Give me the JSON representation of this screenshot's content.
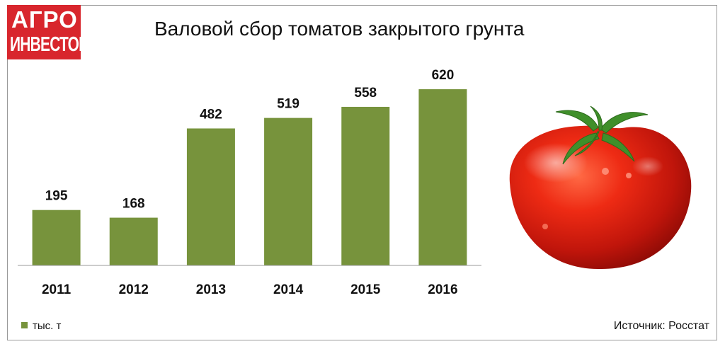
{
  "logo": {
    "line1": "АГРО",
    "line2": "ИНВЕСТОР"
  },
  "title": "Валовой сбор томатов закрытого грунта",
  "source": "Источник: Росстат",
  "colors": {
    "bar": "#77933c",
    "logo": "#d8262d"
  },
  "chart_data": {
    "type": "bar",
    "title": "Валовой сбор томатов закрытого грунта",
    "categories": [
      "2011",
      "2012",
      "2013",
      "2014",
      "2015",
      "2016"
    ],
    "series": [
      {
        "name": "тыс. т",
        "values": [
          195,
          168,
          482,
          519,
          558,
          620
        ]
      }
    ],
    "ylim": [
      0,
      660
    ],
    "grid": false,
    "legend_position": "bottom-left",
    "data_labels": true
  }
}
